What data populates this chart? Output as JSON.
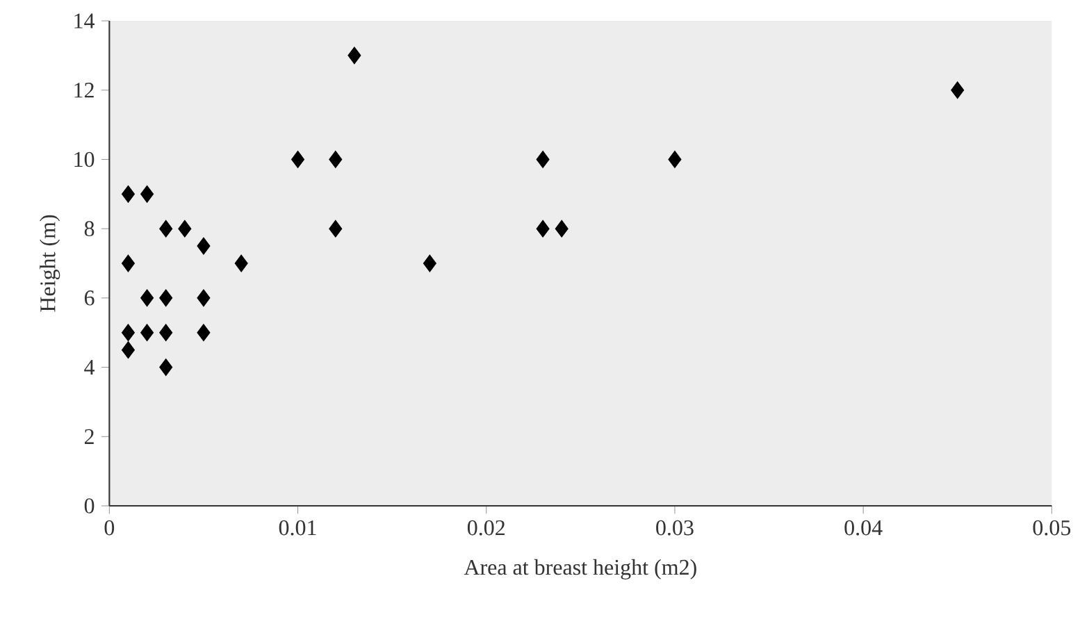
{
  "chart_data": {
    "type": "scatter",
    "xlabel": "Area at breast height (m2)",
    "ylabel": "Height (m)",
    "x": [
      0.001,
      0.001,
      0.001,
      0.001,
      0.002,
      0.002,
      0.002,
      0.003,
      0.003,
      0.003,
      0.003,
      0.004,
      0.005,
      0.005,
      0.005,
      0.007,
      0.01,
      0.012,
      0.012,
      0.013,
      0.017,
      0.023,
      0.023,
      0.024,
      0.03,
      0.045
    ],
    "values": [
      4.5,
      5,
      7,
      9,
      9,
      6,
      5,
      8,
      6,
      5,
      4,
      8,
      7.5,
      6,
      5,
      7,
      10,
      10,
      8,
      13,
      7,
      10,
      8,
      8,
      10,
      12
    ],
    "color": "#000000",
    "marker": "diamond",
    "xlim": [
      0,
      0.05
    ],
    "xticks": [
      0,
      0.01,
      0.02,
      0.03,
      0.04,
      0.05
    ],
    "ylim": [
      0,
      14
    ],
    "yticks": [
      0,
      2,
      4,
      6,
      8,
      10,
      12,
      14
    ]
  }
}
